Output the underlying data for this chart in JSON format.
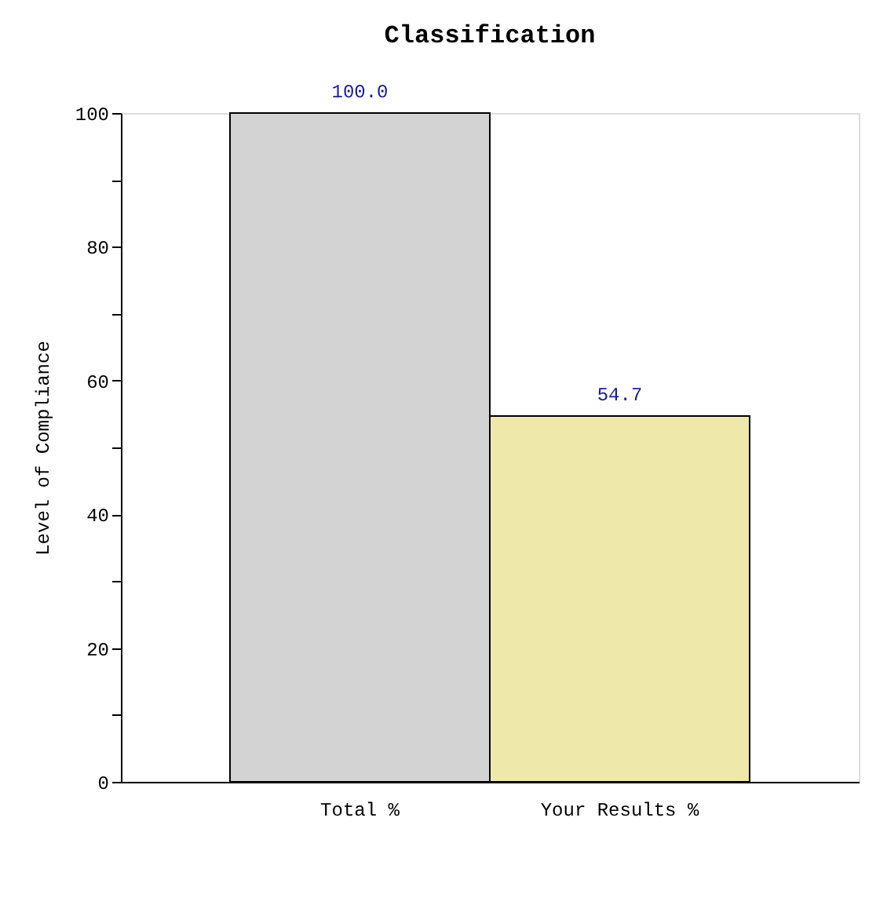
{
  "chart_data": {
    "type": "bar",
    "title": "Classification",
    "ylabel": "Level of Compliance",
    "categories": [
      "Total %",
      "Your Results %"
    ],
    "values": [
      100.0,
      54.7
    ],
    "colors": [
      "#d3d3d3",
      "#eee8aa"
    ],
    "value_labels": [
      "100.0",
      "54.7"
    ],
    "ylim": [
      0,
      100
    ],
    "yticks": [
      0,
      {
        "value": 10,
        "label": null
      },
      20,
      {
        "value": 30,
        "label": null
      },
      40,
      {
        "value": 50,
        "label": null
      },
      60,
      {
        "value": 70,
        "label": null
      },
      80,
      {
        "value": 90,
        "label": null
      },
      100
    ],
    "grid": false
  }
}
